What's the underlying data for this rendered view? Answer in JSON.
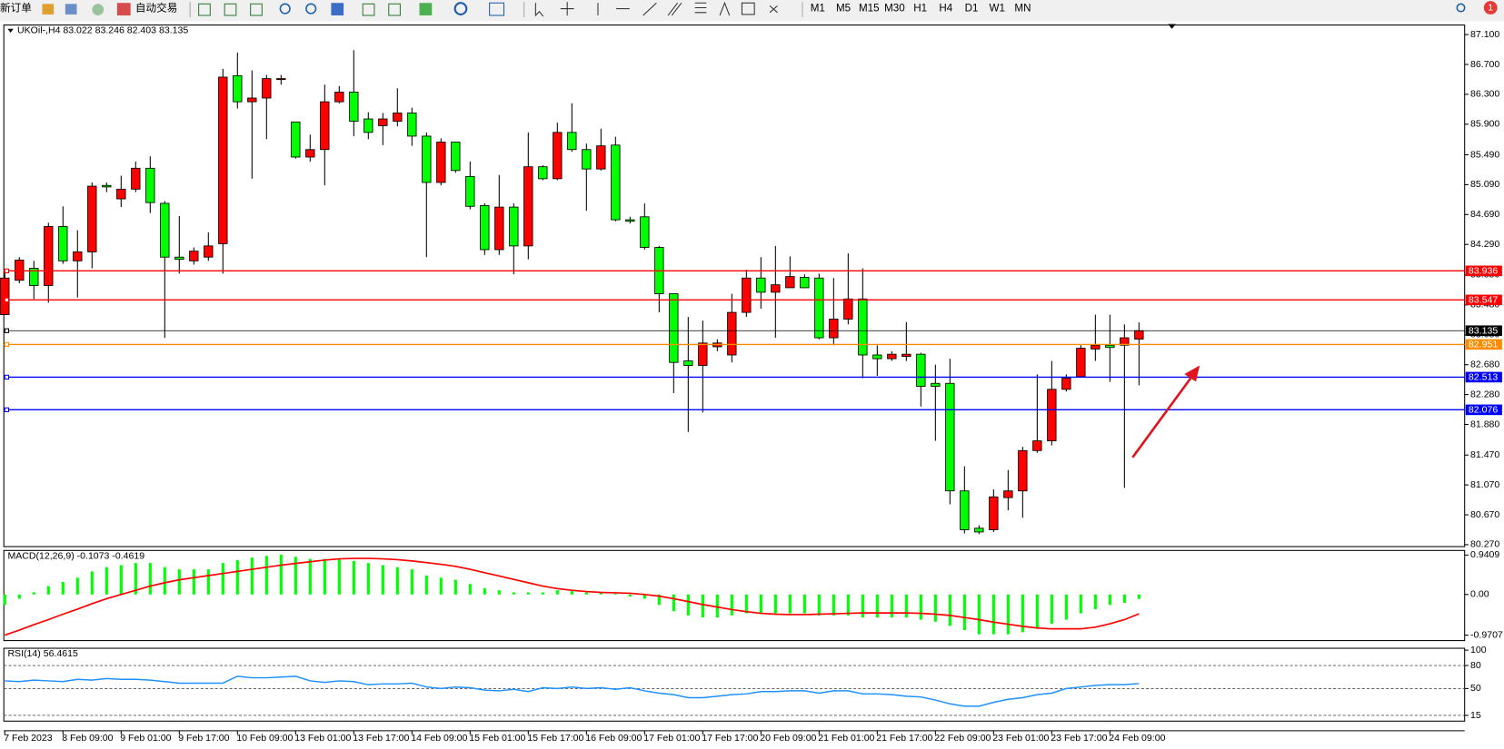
{
  "toolbar": {
    "new_order": "新订单",
    "auto_trading": "自动交易",
    "timeframes": [
      "M1",
      "M5",
      "M15",
      "M30",
      "H1",
      "H4",
      "D1",
      "W1",
      "MN"
    ],
    "badge": 1
  },
  "chart_data": [
    {
      "type": "candlestick",
      "title": "UKOil-,H4  83.022 83.246 82.403 83.135",
      "categories": [
        "7 Feb 2023",
        null,
        null,
        null,
        "8 Feb 09:00",
        null,
        null,
        null,
        "9 Feb 01:00",
        null,
        null,
        null,
        "9 Feb 17:00",
        null,
        null,
        null,
        "10 Feb 09:00",
        null,
        null,
        null,
        "13 Feb 01:00",
        null,
        null,
        null,
        "13 Feb 17:00",
        null,
        null,
        null,
        "14 Feb 09:00",
        null,
        null,
        null,
        "15 Feb 01:00",
        null,
        null,
        null,
        "15 Feb 17:00",
        null,
        null,
        null,
        "16 Feb 09:00",
        null,
        null,
        null,
        "17 Feb 01:00",
        null,
        null,
        null,
        "17 Feb 17:00",
        null,
        null,
        null,
        "20 Feb 09:00",
        null,
        null,
        null,
        "21 Feb 01:00",
        null,
        null,
        null,
        "21 Feb 17:00",
        null,
        null,
        null,
        "22 Feb 09:00",
        null,
        null,
        null,
        "23 Feb 01:00",
        null,
        null,
        null,
        "23 Feb 17:00",
        null,
        null,
        null,
        "24 Feb 09:00",
        null,
        null
      ],
      "open": [
        83.35,
        83.81,
        83.97,
        83.74,
        84.53,
        84.07,
        84.19,
        85.08,
        84.9,
        85.03,
        85.31,
        84.84,
        84.12,
        84.07,
        84.12,
        84.3,
        86.55,
        86.2,
        86.25,
        86.5,
        85.93,
        85.46,
        85.56,
        86.2,
        86.33,
        85.97,
        85.88,
        85.94,
        86.05,
        85.74,
        85.12,
        85.66,
        85.2,
        84.81,
        84.22,
        84.79,
        84.27,
        85.33,
        85.17,
        85.79,
        85.56,
        85.3,
        85.62,
        84.62,
        84.66,
        84.25,
        83.63,
        82.73,
        82.67,
        82.92,
        82.81,
        83.38,
        83.84,
        83.65,
        83.71,
        83.85,
        83.84,
        83.04,
        83.29,
        83.56,
        82.81,
        82.76,
        82.79,
        82.82,
        82.43,
        82.43,
        80.99,
        80.49,
        80.47,
        80.9,
        80.99,
        81.53,
        81.66,
        82.35,
        82.52,
        82.89,
        82.94,
        82.94,
        83.022
      ],
      "high": [
        83.94,
        84.12,
        84.07,
        84.58,
        84.8,
        84.48,
        85.12,
        85.12,
        85.21,
        85.4,
        85.47,
        84.87,
        84.67,
        84.25,
        84.45,
        86.64,
        86.86,
        86.62,
        86.56,
        86.56,
        85.93,
        85.76,
        86.43,
        86.41,
        86.89,
        86.06,
        86.05,
        86.38,
        86.12,
        85.79,
        85.71,
        85.66,
        85.4,
        84.84,
        85.22,
        84.84,
        85.79,
        85.35,
        85.92,
        86.18,
        85.64,
        85.84,
        85.73,
        84.66,
        84.84,
        84.27,
        83.63,
        83.32,
        83.27,
        83.02,
        83.63,
        83.95,
        84.12,
        84.27,
        84.13,
        83.89,
        83.9,
        83.84,
        84.17,
        83.97,
        82.94,
        82.86,
        83.25,
        82.84,
        82.68,
        82.76,
        81.32,
        80.53,
        81.01,
        81.27,
        81.58,
        82.55,
        82.73,
        82.55,
        82.94,
        83.35,
        83.35,
        83.22,
        83.246
      ],
      "low": [
        83.35,
        83.77,
        83.56,
        83.51,
        84.03,
        83.58,
        83.97,
        84.99,
        84.79,
        84.99,
        84.71,
        83.04,
        83.9,
        84.02,
        84.07,
        83.9,
        86.11,
        85.17,
        85.7,
        86.43,
        85.44,
        85.4,
        85.08,
        86.18,
        85.74,
        85.7,
        85.62,
        85.87,
        85.61,
        84.12,
        85.08,
        85.25,
        84.76,
        84.15,
        84.15,
        83.89,
        84.09,
        85.15,
        85.15,
        85.53,
        84.74,
        85.28,
        84.6,
        84.57,
        84.22,
        83.38,
        82.3,
        81.78,
        82.04,
        82.86,
        82.71,
        83.32,
        83.43,
        83.04,
        83.71,
        83.71,
        83.02,
        82.94,
        83.22,
        82.5,
        82.53,
        82.73,
        82.73,
        82.12,
        81.66,
        80.81,
        80.42,
        80.41,
        80.44,
        80.73,
        80.63,
        81.5,
        81.6,
        82.32,
        82.52,
        82.73,
        82.45,
        81.03,
        82.403
      ],
      "close": [
        83.84,
        84.08,
        83.74,
        84.53,
        84.07,
        84.19,
        85.07,
        85.06,
        85.03,
        85.31,
        84.85,
        84.12,
        84.09,
        84.2,
        84.27,
        86.53,
        86.2,
        86.25,
        86.51,
        86.51,
        85.46,
        85.56,
        86.2,
        86.33,
        85.94,
        85.79,
        85.97,
        86.05,
        85.74,
        85.12,
        85.66,
        85.28,
        84.8,
        84.22,
        84.79,
        84.27,
        85.33,
        85.17,
        85.79,
        85.56,
        85.3,
        85.61,
        84.62,
        84.6,
        84.25,
        83.63,
        82.71,
        82.67,
        82.97,
        82.97,
        83.38,
        83.84,
        83.65,
        83.75,
        83.86,
        83.71,
        83.04,
        83.29,
        83.56,
        82.81,
        82.76,
        82.82,
        82.82,
        82.39,
        82.39,
        80.99,
        80.47,
        80.44,
        80.91,
        80.99,
        81.53,
        81.66,
        82.35,
        82.5,
        82.9,
        82.94,
        82.91,
        83.04,
        83.135
      ],
      "up_color": "#ff0000",
      "down_color": "#00ff00",
      "levels": [
        {
          "value": 83.936,
          "color": "#ff0000"
        },
        {
          "value": 83.547,
          "color": "#ff0000"
        },
        {
          "value": 83.135,
          "color": "#000000"
        },
        {
          "value": 82.951,
          "color": "#ff8c00"
        },
        {
          "value": 82.513,
          "color": "#0000ff"
        },
        {
          "value": 82.076,
          "color": "#0000ff"
        }
      ],
      "ylim": [
        80.244,
        87.228
      ],
      "yticks": [
        {
          "value": 87.1,
          "label": "87.100"
        },
        {
          "value": 86.7,
          "label": "86.700"
        },
        {
          "value": 86.3,
          "label": "86.300"
        },
        {
          "value": 85.9,
          "label": "85.900"
        },
        {
          "value": 85.49,
          "label": "85.490"
        },
        {
          "value": 85.09,
          "label": "85.090"
        },
        {
          "value": 84.69,
          "label": "84.690"
        },
        {
          "value": 84.29,
          "label": "84.290"
        },
        {
          "value": 83.88,
          "label": "83.880"
        },
        {
          "value": 83.48,
          "label": "83.480"
        },
        {
          "value": 83.08,
          "label": "83.080"
        },
        {
          "value": 82.68,
          "label": "82.680"
        },
        {
          "value": 82.28,
          "label": "82.280"
        },
        {
          "value": 81.88,
          "label": "81.880"
        },
        {
          "value": 81.47,
          "label": "81.470"
        },
        {
          "value": 81.07,
          "label": "81.070"
        },
        {
          "value": 80.67,
          "label": "80.670"
        },
        {
          "value": 80.27,
          "label": "80.270"
        }
      ]
    },
    {
      "type": "macd",
      "title": "MACD(12,26,9) -0.1073 -0.4619",
      "histogram": [
        -0.25,
        -0.1,
        0.05,
        0.2,
        0.3,
        0.4,
        0.55,
        0.65,
        0.7,
        0.75,
        0.75,
        0.65,
        0.6,
        0.6,
        0.6,
        0.75,
        0.82,
        0.88,
        0.92,
        0.95,
        0.9,
        0.85,
        0.85,
        0.85,
        0.8,
        0.75,
        0.7,
        0.65,
        0.6,
        0.45,
        0.4,
        0.35,
        0.25,
        0.15,
        0.1,
        0.05,
        0.05,
        0.05,
        0.1,
        0.08,
        0.05,
        0.05,
        0.02,
        -0.05,
        -0.1,
        -0.25,
        -0.4,
        -0.5,
        -0.55,
        -0.55,
        -0.5,
        -0.45,
        -0.45,
        -0.45,
        -0.45,
        -0.45,
        -0.5,
        -0.5,
        -0.5,
        -0.55,
        -0.55,
        -0.55,
        -0.55,
        -0.6,
        -0.65,
        -0.75,
        -0.85,
        -0.95,
        -0.95,
        -0.95,
        -0.9,
        -0.8,
        -0.7,
        -0.6,
        -0.45,
        -0.35,
        -0.25,
        -0.2,
        -0.1073
      ],
      "signal": [
        -0.97,
        -0.85,
        -0.72,
        -0.6,
        -0.47,
        -0.35,
        -0.22,
        -0.1,
        0.0,
        0.1,
        0.2,
        0.28,
        0.35,
        0.4,
        0.45,
        0.5,
        0.55,
        0.6,
        0.65,
        0.7,
        0.74,
        0.78,
        0.82,
        0.85,
        0.86,
        0.86,
        0.85,
        0.83,
        0.8,
        0.76,
        0.72,
        0.67,
        0.6,
        0.52,
        0.44,
        0.36,
        0.28,
        0.2,
        0.14,
        0.1,
        0.07,
        0.05,
        0.04,
        0.03,
        0.0,
        -0.04,
        -0.1,
        -0.17,
        -0.24,
        -0.3,
        -0.36,
        -0.41,
        -0.45,
        -0.47,
        -0.48,
        -0.48,
        -0.47,
        -0.46,
        -0.45,
        -0.44,
        -0.44,
        -0.44,
        -0.44,
        -0.45,
        -0.47,
        -0.5,
        -0.55,
        -0.6,
        -0.66,
        -0.71,
        -0.76,
        -0.8,
        -0.82,
        -0.82,
        -0.82,
        -0.78,
        -0.7,
        -0.6,
        -0.4619
      ],
      "histogram_color": "#00ff00",
      "signal_color": "#ff0000",
      "ylim": [
        -1.1,
        1.05
      ],
      "yticks": [
        0.9409,
        {
          "value": 0,
          "label": "0.00"
        },
        -0.9707
      ]
    },
    {
      "type": "line",
      "title": "RSI(14) 56.4615",
      "values": [
        60,
        59,
        61,
        60,
        59,
        62,
        61,
        63,
        62,
        62,
        61,
        59,
        57,
        57,
        57,
        57,
        66,
        64,
        64,
        65,
        66,
        60,
        58,
        60,
        59,
        55,
        56,
        56,
        57,
        52,
        50,
        52,
        51,
        48,
        47,
        49,
        46,
        51,
        50,
        52,
        50,
        51,
        49,
        51,
        47,
        44,
        42,
        38,
        38,
        40,
        42,
        43,
        46,
        46,
        47,
        47,
        44,
        47,
        47,
        43,
        43,
        42,
        40,
        39,
        35,
        30,
        27,
        27,
        32,
        36,
        38,
        42,
        44,
        50,
        52,
        54,
        55,
        55,
        56.4615
      ],
      "color": "#1e90ff",
      "ylim": [
        7.5,
        102.5
      ],
      "yticks": [
        100,
        80,
        50,
        15
      ],
      "levels": [
        80,
        50,
        15
      ]
    }
  ]
}
